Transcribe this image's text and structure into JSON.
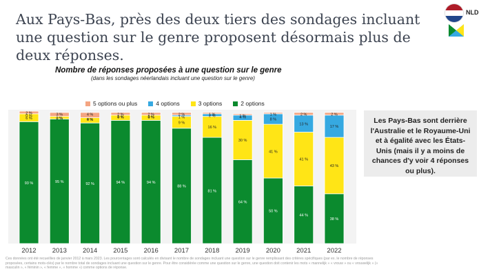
{
  "headline": "Aux Pays-Bas, près des deux tiers des sondages incluant une question sur le genre proposent désormais plus de deux réponses.",
  "country_code": "NLD",
  "colors": {
    "five_plus": "#f4a582",
    "four": "#36a9e1",
    "three": "#ffe516",
    "two": "#0b8a2e",
    "text": "#3d4451",
    "callout_bg": "#ececec",
    "flag_red": "#ae1c28",
    "flag_white": "#ffffff",
    "flag_blue": "#21468b"
  },
  "chart_data": {
    "type": "bar",
    "stacked": true,
    "title": "Nombre de réponses proposées à une question sur le genre",
    "subtitle": "(dans les sondages néerlandais incluant une question sur le genre)",
    "categories": [
      "2012",
      "2013",
      "2014",
      "2015",
      "2016",
      "2017",
      "2018",
      "2019",
      "2020",
      "2021",
      "2022"
    ],
    "series": [
      {
        "name": "2 options",
        "color": "#0b8a2e",
        "values": [
          93,
          95,
          92,
          94,
          94,
          88,
          81,
          64,
          50,
          44,
          38
        ]
      },
      {
        "name": "3 options",
        "color": "#ffe516",
        "values": [
          6,
          2,
          4,
          4,
          4,
          9,
          16,
          30,
          41,
          41,
          43
        ]
      },
      {
        "name": "4 options",
        "color": "#36a9e1",
        "values": [
          0,
          0,
          0,
          0,
          0,
          1,
          2,
          4,
          8,
          13,
          17
        ]
      },
      {
        "name": "5 options ou plus",
        "color": "#f4a582",
        "values": [
          2,
          3,
          4,
          2,
          2,
          2,
          1,
          1,
          1,
          2,
          2
        ]
      }
    ],
    "legend_order": [
      "5 options ou plus",
      "4 options",
      "3 options",
      "2 options"
    ],
    "label_suffix": " %",
    "ylim": [
      0,
      100
    ]
  },
  "callout": "Les Pays-Bas sont derrière l'Australie et le Royaume-Uni et à égalité avec les États-Unis (mais il y a moins de chances d'y voir 4 réponses ou plus).",
  "footnote": "Ces données ont été recueillies de janvier 2012 à mars 2023. Les pourcentages sont calculés en divisant le nombre de sondages incluant une question sur le genre remplissant des critères spécifiques (par ex. le nombre de réponses proposées, certains mots-clés) par le nombre total de sondages incluant une question sur le genre. Pour être considérée comme une question sur le genre, une question doit contenir les mots « mannelijk » « vrouw » ou « vrouwelijk » (« masculin », « féminin », « femme », « homme ») comme options de réponse."
}
